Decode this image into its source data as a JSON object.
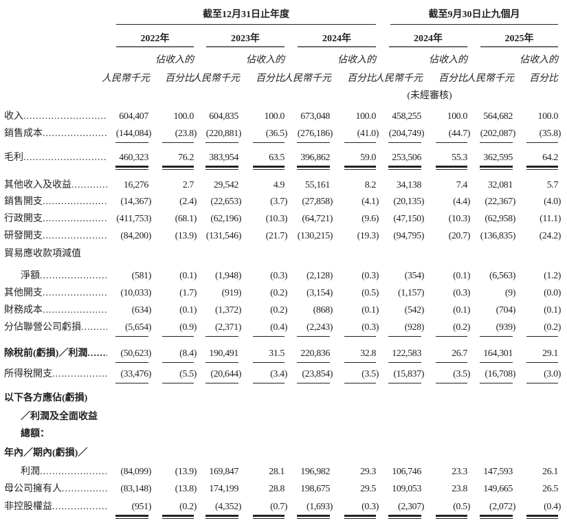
{
  "header": {
    "groups": [
      "截至12月31日止年度",
      "截至9月30日止九個月"
    ],
    "years": [
      "2022年",
      "2023年",
      "2024年",
      "2024年",
      "2025年"
    ],
    "pct_top": "佔收入的",
    "amount_unit": "人民幣千元",
    "pct_unit": "百分比",
    "unaudited": "(未經審核)"
  },
  "rows": [
    {
      "label": "收入",
      "values": [
        "604,407",
        "100.0",
        "604,835",
        "100.0",
        "673,048",
        "100.0",
        "458,255",
        "100.0",
        "564,682",
        "100.0"
      ]
    },
    {
      "label": "銷售成本",
      "values": [
        "(144,084)",
        "(23.8)",
        "(220,881)",
        "(36.5)",
        "(276,186)",
        "(41.0)",
        "(204,749)",
        "(44.7)",
        "(202,087)",
        "(35.8)"
      ]
    },
    {
      "label": "毛利",
      "values": [
        "460,323",
        "76.2",
        "383,954",
        "63.5",
        "396,862",
        "59.0",
        "253,506",
        "55.3",
        "362,595",
        "64.2"
      ]
    },
    {
      "label": "其他收入及收益",
      "values": [
        "16,276",
        "2.7",
        "29,542",
        "4.9",
        "55,161",
        "8.2",
        "34,138",
        "7.4",
        "32,081",
        "5.7"
      ]
    },
    {
      "label": "銷售開支",
      "values": [
        "(14,367)",
        "(2.4)",
        "(22,653)",
        "(3.7)",
        "(27,858)",
        "(4.1)",
        "(20,135)",
        "(4.4)",
        "(22,367)",
        "(4.0)"
      ]
    },
    {
      "label": "行政開支",
      "values": [
        "(411,753)",
        "(68.1)",
        "(62,196)",
        "(10.3)",
        "(64,721)",
        "(9.6)",
        "(47,150)",
        "(10.3)",
        "(62,958)",
        "(11.1)"
      ]
    },
    {
      "label": "研發開支",
      "values": [
        "(84,200)",
        "(13.9)",
        "(131,546)",
        "(21.7)",
        "(130,215)",
        "(19.3)",
        "(94,795)",
        "(20.7)",
        "(136,835)",
        "(24.2)"
      ]
    },
    {
      "label": "貿易應收款項減值",
      "values": []
    },
    {
      "label": "淨額",
      "values": [
        "(581)",
        "(0.1)",
        "(1,948)",
        "(0.3)",
        "(2,128)",
        "(0.3)",
        "(354)",
        "(0.1)",
        "(6,563)",
        "(1.2)"
      ]
    },
    {
      "label": "其他開支",
      "values": [
        "(10,033)",
        "(1.7)",
        "(919)",
        "(0.2)",
        "(3,154)",
        "(0.5)",
        "(1,157)",
        "(0.3)",
        "(9)",
        "(0.0)"
      ]
    },
    {
      "label": "財務成本",
      "values": [
        "(634)",
        "(0.1)",
        "(1,372)",
        "(0.2)",
        "(868)",
        "(0.1)",
        "(542)",
        "(0.1)",
        "(704)",
        "(0.1)"
      ]
    },
    {
      "label": "分佔聯營公司虧損",
      "values": [
        "(5,654)",
        "(0.9)",
        "(2,371)",
        "(0.4)",
        "(2,243)",
        "(0.3)",
        "(928)",
        "(0.2)",
        "(939)",
        "(0.2)"
      ]
    },
    {
      "label": "除稅前(虧損)／利潤",
      "values": [
        "(50,623)",
        "(8.4)",
        "190,491",
        "31.5",
        "220,836",
        "32.8",
        "122,583",
        "26.7",
        "164,301",
        "29.1"
      ]
    },
    {
      "label": "所得稅開支",
      "values": [
        "(33,476)",
        "(5.5)",
        "(20,644)",
        "(3.4)",
        "(23,854)",
        "(3.5)",
        "(15,837)",
        "(3.5)",
        "(16,708)",
        "(3.0)"
      ]
    },
    {
      "label": "以下各方應佔(虧損)",
      "values": []
    },
    {
      "label": "／利潤及全面收益",
      "values": []
    },
    {
      "label": "總額：",
      "values": []
    },
    {
      "label": "年內／期內(虧損)／",
      "values": []
    },
    {
      "label": "利潤",
      "values": [
        "(84,099)",
        "(13.9)",
        "169,847",
        "28.1",
        "196,982",
        "29.3",
        "106,746",
        "23.3",
        "147,593",
        "26.1"
      ]
    },
    {
      "label": "母公司擁有人",
      "values": [
        "(83,148)",
        "(13.8)",
        "174,199",
        "28.8",
        "198,675",
        "29.5",
        "109,053",
        "23.8",
        "149,665",
        "26.5"
      ]
    },
    {
      "label": "非控股權益",
      "values": [
        "(951)",
        "(0.2)",
        "(4,352)",
        "(0.7)",
        "(1,693)",
        "(0.3)",
        "(2,307)",
        "(0.5)",
        "(2,072)",
        "(0.4)"
      ]
    }
  ]
}
